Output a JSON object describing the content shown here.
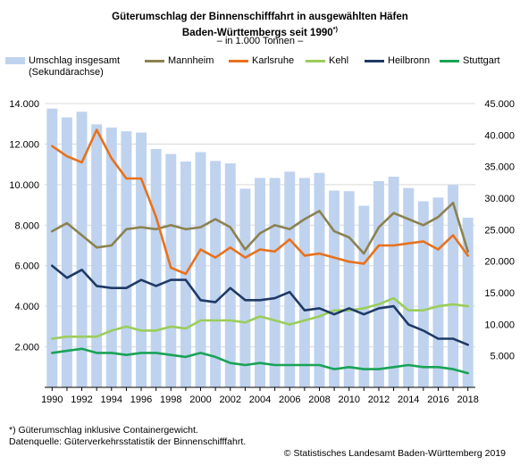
{
  "title_line1": "Güterumschlag der Binnenschifffahrt in ausgewählten Häfen",
  "title_line2": "Baden-Württembergs seit 1990",
  "title_mark": "*)",
  "subtitle": "– in 1.000 Tonnen –",
  "footnote1": "*) Güterumschlag inklusive Containergewicht.",
  "footnote2": "Datenquelle: Güterverkehrsstatistik der Binnenschifffahrt.",
  "copyright": "© Statistisches Landesamt Baden-Württemberg 2019",
  "chart_data": {
    "type": "bar+line",
    "x": [
      1990,
      1991,
      1992,
      1993,
      1994,
      1995,
      1996,
      1997,
      1998,
      1999,
      2000,
      2001,
      2002,
      2003,
      2004,
      2005,
      2006,
      2007,
      2008,
      2009,
      2010,
      2011,
      2012,
      2013,
      2014,
      2015,
      2016,
      2017,
      2018
    ],
    "x_tick_labels": [
      "1990",
      "1992",
      "1994",
      "1996",
      "1998",
      "2000",
      "2002",
      "2004",
      "2006",
      "2008",
      "2010",
      "2012",
      "2014",
      "2016",
      "2018"
    ],
    "y_left": {
      "lim": [
        0,
        14000
      ],
      "ticks": [
        "2.000",
        "4.000",
        "6.000",
        "8.000",
        "10.000",
        "12.000",
        "14.000"
      ]
    },
    "y_right": {
      "lim": [
        0,
        45000
      ],
      "ticks": [
        "5.000",
        "10.000",
        "15.000",
        "20.000",
        "25.000",
        "30.000",
        "35.000",
        "40.000",
        "45.000"
      ]
    },
    "grid": true,
    "legend_position": "top",
    "bar_series": {
      "name": "Umschlag insgesamt",
      "name_line2": "(Sekundärachse)",
      "axis": "right",
      "color": "#bfd3ef",
      "values": [
        44200,
        42800,
        43700,
        41700,
        41200,
        40600,
        40400,
        37800,
        37000,
        35800,
        37300,
        35900,
        35500,
        31500,
        33200,
        33200,
        34200,
        33200,
        34000,
        31200,
        31100,
        28800,
        32700,
        33400,
        31600,
        29500,
        30100,
        32100,
        26900
      ]
    },
    "series": [
      {
        "name": "Mannheim",
        "color": "#8c8250",
        "values": [
          7700,
          8100,
          7500,
          6900,
          7000,
          7800,
          7900,
          7800,
          8000,
          7800,
          7900,
          8300,
          7900,
          6800,
          7600,
          8000,
          7800,
          8300,
          8700,
          7700,
          7400,
          6600,
          7900,
          8600,
          8300,
          8000,
          8400,
          9100,
          6700
        ]
      },
      {
        "name": "Karlsruhe",
        "color": "#e8711c",
        "values": [
          11900,
          11400,
          11100,
          12700,
          11300,
          10300,
          10300,
          8400,
          5900,
          5600,
          6800,
          6400,
          6900,
          6400,
          6800,
          6700,
          7300,
          6500,
          6600,
          6400,
          6200,
          6100,
          7000,
          7000,
          7100,
          7200,
          6800,
          7500,
          6500
        ]
      },
      {
        "name": "Kehl",
        "color": "#9acd5a",
        "values": [
          2400,
          2500,
          2500,
          2500,
          2800,
          3000,
          2800,
          2800,
          3000,
          2900,
          3300,
          3300,
          3300,
          3200,
          3500,
          3300,
          3100,
          3300,
          3500,
          3800,
          3800,
          3900,
          4100,
          4400,
          3800,
          3800,
          4000,
          4100,
          4000
        ]
      },
      {
        "name": "Heilbronn",
        "color": "#1f3a66",
        "values": [
          6000,
          5400,
          5800,
          5000,
          4900,
          4900,
          5300,
          5000,
          5300,
          5300,
          4300,
          4200,
          4900,
          4300,
          4300,
          4400,
          4700,
          3800,
          3900,
          3600,
          3900,
          3600,
          3900,
          4000,
          3100,
          2800,
          2400,
          2400,
          2100
        ]
      },
      {
        "name": "Stuttgart",
        "color": "#1aa356",
        "values": [
          1700,
          1800,
          1900,
          1700,
          1700,
          1600,
          1700,
          1700,
          1600,
          1500,
          1700,
          1500,
          1200,
          1100,
          1200,
          1100,
          1100,
          1100,
          1100,
          900,
          1000,
          900,
          900,
          1000,
          1100,
          1000,
          1000,
          900,
          700
        ]
      }
    ]
  }
}
